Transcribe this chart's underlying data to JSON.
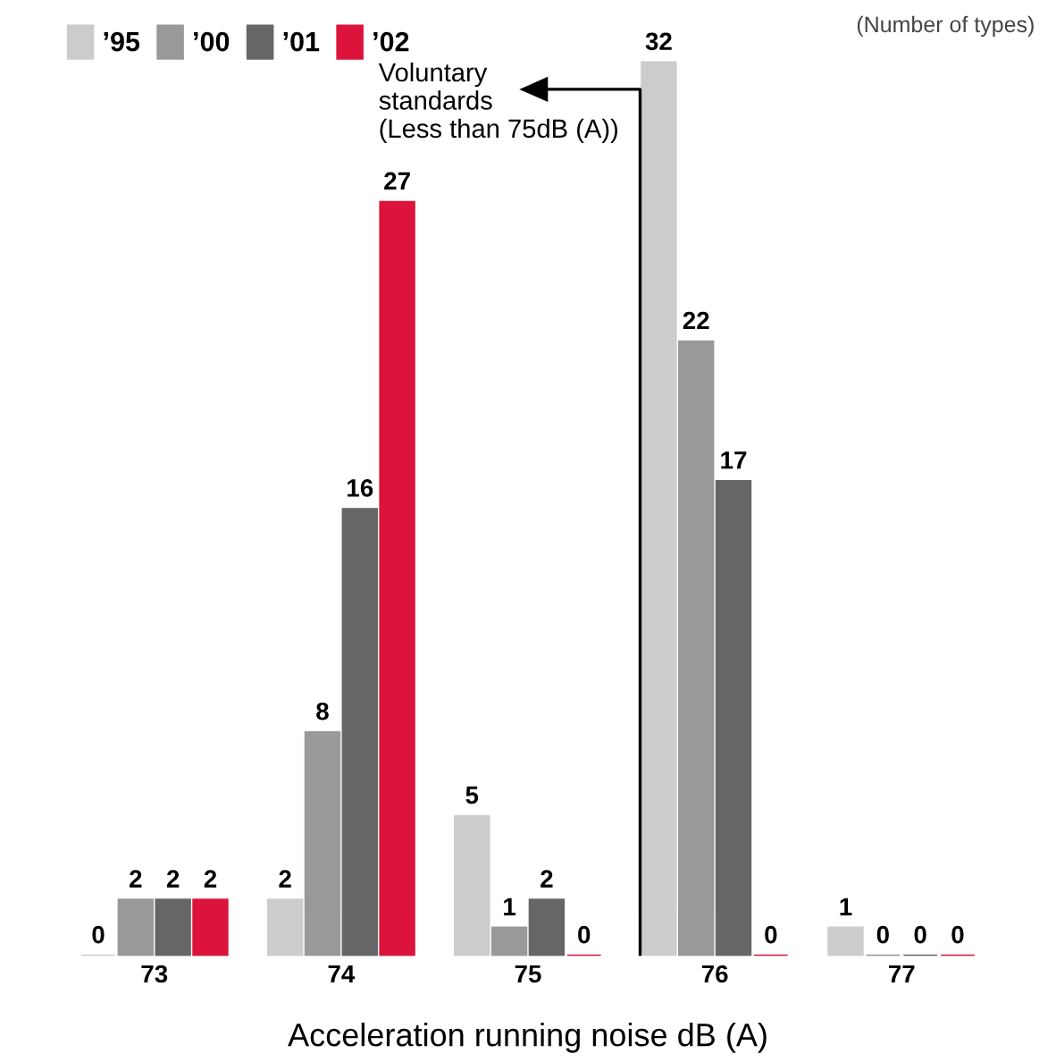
{
  "chart_data": {
    "type": "bar",
    "xlabel": "Acceleration running noise dB (A)",
    "categories": [
      "73",
      "74",
      "75",
      "76",
      "77"
    ],
    "series": [
      {
        "name": "’95",
        "color": "#cccccc",
        "values": [
          0,
          2,
          5,
          32,
          1
        ]
      },
      {
        "name": "’00",
        "color": "#999999",
        "values": [
          2,
          8,
          1,
          22,
          0
        ]
      },
      {
        "name": "’01",
        "color": "#666666",
        "values": [
          2,
          16,
          2,
          17,
          0
        ]
      },
      {
        "name": "’02",
        "color": "#dc143c",
        "values": [
          2,
          27,
          0,
          0,
          0
        ]
      }
    ],
    "annotations": [
      "(Number of types)",
      "Voluntary\nstandards\n(Less than 75dB (A))"
    ],
    "data_labels": true,
    "legend": "top left",
    "grid": false
  }
}
